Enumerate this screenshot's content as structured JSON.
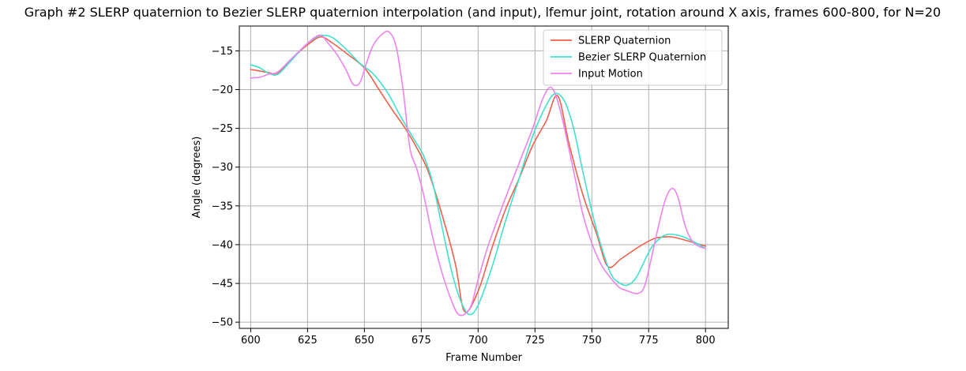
{
  "chart_data": {
    "type": "line",
    "title": "Graph #2 SLERP quaternion to Bezier SLERP quaternion interpolation (and input), lfemur joint, rotation around X axis, frames 600-800, for N=20",
    "xlabel": "Frame Number",
    "ylabel": "Angle (degrees)",
    "xlim": [
      595,
      810
    ],
    "ylim": [
      -50.8,
      -11.8
    ],
    "xticks": [
      600,
      625,
      650,
      675,
      700,
      725,
      750,
      775,
      800
    ],
    "yticks": [
      -50,
      -45,
      -40,
      -35,
      -30,
      -25,
      -20,
      -15
    ],
    "ytick_labels": [
      "−50",
      "−45",
      "−40",
      "−35",
      "−30",
      "−25",
      "−20",
      "−15"
    ],
    "grid": true,
    "legend_position": "top-right",
    "series": [
      {
        "name": "SLERP Quaternion",
        "color": "#f0604a",
        "x": [
          600,
          608,
          612,
          620,
          626,
          631,
          636,
          642,
          650,
          656,
          662,
          668,
          673,
          678,
          684,
          690,
          694,
          700,
          706,
          712,
          718,
          724,
          730,
          735,
          740,
          746,
          752,
          757,
          763,
          770,
          776,
          779,
          785,
          792,
          800
        ],
        "y": [
          -17.4,
          -17.8,
          -17.9,
          -15.5,
          -14.0,
          -13.2,
          -14.0,
          -15.3,
          -17.2,
          -19.8,
          -22.5,
          -25.0,
          -27.5,
          -30.5,
          -36.0,
          -42.5,
          -48.6,
          -46.0,
          -40.5,
          -35.5,
          -31.5,
          -27.2,
          -24.0,
          -20.8,
          -27.0,
          -33.5,
          -38.5,
          -42.8,
          -41.8,
          -40.4,
          -39.4,
          -39.1,
          -39.0,
          -39.5,
          -40.2
        ]
      },
      {
        "name": "Bezier SLERP Quaternion",
        "color": "#40e0d0",
        "x": [
          600,
          604,
          608,
          612,
          618,
          624,
          629,
          632,
          636,
          642,
          648,
          654,
          660,
          666,
          672,
          676,
          680,
          684,
          688,
          692,
          696,
          700,
          706,
          712,
          718,
          724,
          730,
          734,
          738,
          742,
          746,
          752,
          758,
          762,
          766,
          770,
          776,
          782,
          788,
          794,
          800
        ],
        "y": [
          -16.8,
          -17.2,
          -17.9,
          -18.0,
          -16.2,
          -14.3,
          -13.2,
          -13.0,
          -13.3,
          -14.8,
          -16.6,
          -18.0,
          -20.3,
          -23.5,
          -26.5,
          -28.5,
          -32.0,
          -37.5,
          -43.0,
          -47.0,
          -49.0,
          -47.8,
          -43.0,
          -37.0,
          -31.5,
          -26.0,
          -22.0,
          -20.5,
          -21.5,
          -25.0,
          -30.5,
          -38.0,
          -43.5,
          -44.9,
          -45.2,
          -44.0,
          -40.5,
          -38.8,
          -38.8,
          -39.5,
          -40.5
        ]
      },
      {
        "name": "Input Motion",
        "color": "#ee82ee",
        "x": [
          600,
          604,
          608,
          612,
          618,
          624,
          628,
          631,
          634,
          638,
          642,
          645,
          648,
          651,
          654,
          658,
          661,
          664,
          667,
          670,
          673,
          676,
          680,
          684,
          688,
          691,
          694,
          697,
          700,
          704,
          708,
          712,
          716,
          720,
          724,
          728,
          731,
          733,
          735,
          738,
          742,
          746,
          750,
          754,
          758,
          762,
          766,
          770,
          773,
          776,
          779,
          782,
          784,
          786,
          788,
          791,
          794,
          797,
          800
        ],
        "y": [
          -18.5,
          -18.4,
          -18.0,
          -17.7,
          -16.0,
          -14.3,
          -13.3,
          -13.0,
          -14.0,
          -15.5,
          -17.5,
          -19.3,
          -19.1,
          -16.5,
          -14.2,
          -12.8,
          -12.6,
          -14.5,
          -20.0,
          -27.5,
          -30.2,
          -33.5,
          -39.0,
          -43.5,
          -47.0,
          -48.9,
          -49.0,
          -47.8,
          -44.5,
          -40.5,
          -37.2,
          -34.0,
          -31.0,
          -28.0,
          -25.0,
          -21.5,
          -19.8,
          -20.0,
          -21.5,
          -25.0,
          -30.5,
          -36.0,
          -39.8,
          -42.5,
          -44.2,
          -45.5,
          -46.0,
          -46.3,
          -45.5,
          -42.0,
          -38.0,
          -34.5,
          -33.1,
          -32.8,
          -34.0,
          -37.5,
          -39.5,
          -40.2,
          -40.5
        ]
      }
    ]
  }
}
